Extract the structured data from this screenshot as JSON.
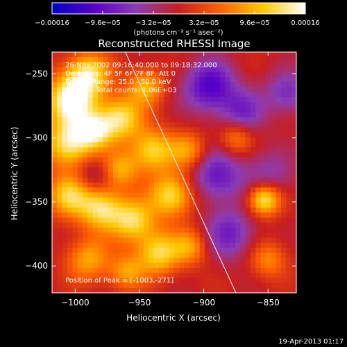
{
  "chart_data": {
    "type": "heatmap",
    "title": "Reconstructed RHESSI Image",
    "xlabel": "Heliocentric X (arcsec)",
    "ylabel": "Heliocentric Y (arcsec)",
    "xlim": [
      -1018,
      -828
    ],
    "ylim": [
      -421,
      -233
    ],
    "x_ticks": [
      -1000,
      -950,
      -900,
      -850
    ],
    "y_ticks": [
      -250,
      -300,
      -350,
      -400
    ],
    "x_tick_labels": [
      "−1000",
      "−950",
      "−900",
      "−850"
    ],
    "y_tick_labels": [
      "−250",
      "−300",
      "−350",
      "−400"
    ],
    "colorbar": {
      "range": [
        -0.00016,
        0.00016
      ],
      "tick_values": [
        -0.00016,
        -9.6e-05,
        -3.2e-05,
        3.2e-05,
        9.6e-05,
        0.00016
      ],
      "tick_labels": [
        "−0.00016",
        "−9.6e−05",
        "−3.2e−05",
        "3.2e−05",
        "9.6e−05",
        "0.00016"
      ],
      "unit_text": "(photons cm⁻² s⁻¹ asec⁻²)",
      "colors": [
        "#0000c8",
        "#5a00c8",
        "#8c3cb4",
        "#c81e1e",
        "#ff6400",
        "#ffc800",
        "#ffffff"
      ]
    },
    "annotations": [
      "26-Nov-2002 09:16:40.000 to 09:18:32.000",
      "Detectors: 4F 5F 6F 7F 8F, Att 0",
      "Energy Range: 25.0 - 50.0 keV",
      "Clean     Total counts: 1.06E+03"
    ],
    "peak_label": "Position of Peak = [-1003,-271]",
    "peak": [
      -1003,
      -271
    ],
    "limb_line": [
      [
        -961,
        -233
      ],
      [
        -875,
        -421
      ]
    ],
    "sources": [
      {
        "x": -1003,
        "y": -271,
        "amp": 1.0,
        "w": 14
      },
      {
        "x": -990,
        "y": -250,
        "amp": 0.75,
        "w": 12
      },
      {
        "x": -1005,
        "y": -305,
        "amp": 0.85,
        "w": 13
      },
      {
        "x": -985,
        "y": -295,
        "amp": 0.7,
        "w": 10
      },
      {
        "x": -965,
        "y": -285,
        "amp": 0.8,
        "w": 12
      },
      {
        "x": -945,
        "y": -260,
        "amp": 0.6,
        "w": 10
      },
      {
        "x": -940,
        "y": -310,
        "amp": 0.75,
        "w": 12
      },
      {
        "x": -965,
        "y": -325,
        "amp": 0.55,
        "w": 10
      },
      {
        "x": -1005,
        "y": -345,
        "amp": 0.7,
        "w": 12
      },
      {
        "x": -980,
        "y": -355,
        "amp": 0.8,
        "w": 12
      },
      {
        "x": -955,
        "y": -365,
        "amp": 0.75,
        "w": 12
      },
      {
        "x": -925,
        "y": -345,
        "amp": 0.8,
        "w": 12
      },
      {
        "x": -935,
        "y": -390,
        "amp": 0.75,
        "w": 12
      },
      {
        "x": -990,
        "y": -395,
        "amp": 0.55,
        "w": 12
      },
      {
        "x": -960,
        "y": -405,
        "amp": 0.5,
        "w": 10
      },
      {
        "x": -910,
        "y": -385,
        "amp": 0.5,
        "w": 10
      },
      {
        "x": -912,
        "y": -310,
        "amp": 0.5,
        "w": 10
      },
      {
        "x": -853,
        "y": -348,
        "amp": 0.95,
        "w": 9
      },
      {
        "x": -875,
        "y": -300,
        "amp": 0.45,
        "w": 9
      },
      {
        "x": -850,
        "y": -395,
        "amp": 0.45,
        "w": 10
      },
      {
        "x": -895,
        "y": -260,
        "amp": -0.7,
        "w": 14
      },
      {
        "x": -870,
        "y": -280,
        "amp": -0.45,
        "w": 12
      },
      {
        "x": -890,
        "y": -330,
        "amp": -0.55,
        "w": 14
      },
      {
        "x": -850,
        "y": -330,
        "amp": -0.35,
        "w": 14
      },
      {
        "x": -880,
        "y": -375,
        "amp": -0.5,
        "w": 14
      },
      {
        "x": -835,
        "y": -265,
        "amp": -0.45,
        "w": 12
      },
      {
        "x": -985,
        "y": -330,
        "amp": -0.3,
        "w": 10
      }
    ]
  },
  "footer": {
    "timestamp": "19-Apr-2013 01:17"
  }
}
